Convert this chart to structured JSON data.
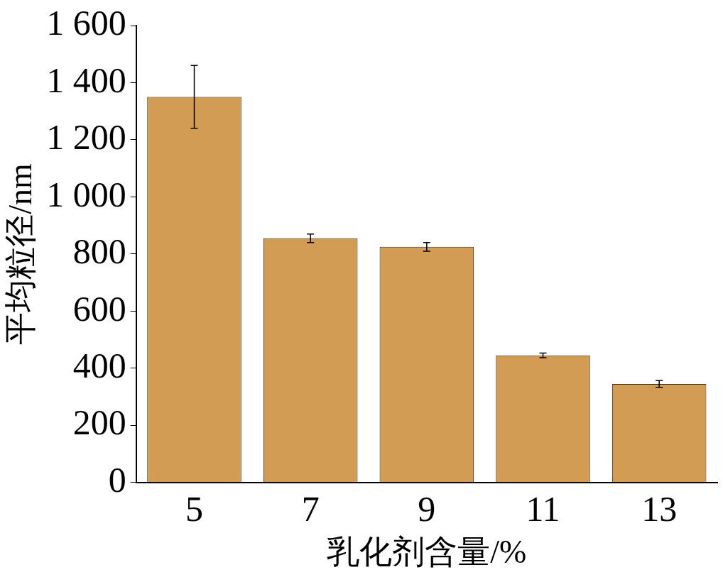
{
  "chart_data": {
    "type": "bar",
    "xlabel": "乳化剂含量/%",
    "ylabel": "平均粒径/nm",
    "categories": [
      "5",
      "7",
      "9",
      "11",
      "13"
    ],
    "values": [
      1350,
      855,
      825,
      445,
      345
    ],
    "errors": [
      110,
      15,
      15,
      8,
      12
    ],
    "color": "#d39c55",
    "ylim": [
      0,
      1600
    ],
    "yticks": [
      0,
      200,
      400,
      600,
      800,
      {
        "value": 1000,
        "label": "1 000"
      },
      {
        "value": 1200,
        "label": "1 200"
      },
      {
        "value": 1400,
        "label": "1 400"
      },
      {
        "value": 1600,
        "label": "1 600"
      }
    ],
    "grid": false,
    "legend": false
  }
}
